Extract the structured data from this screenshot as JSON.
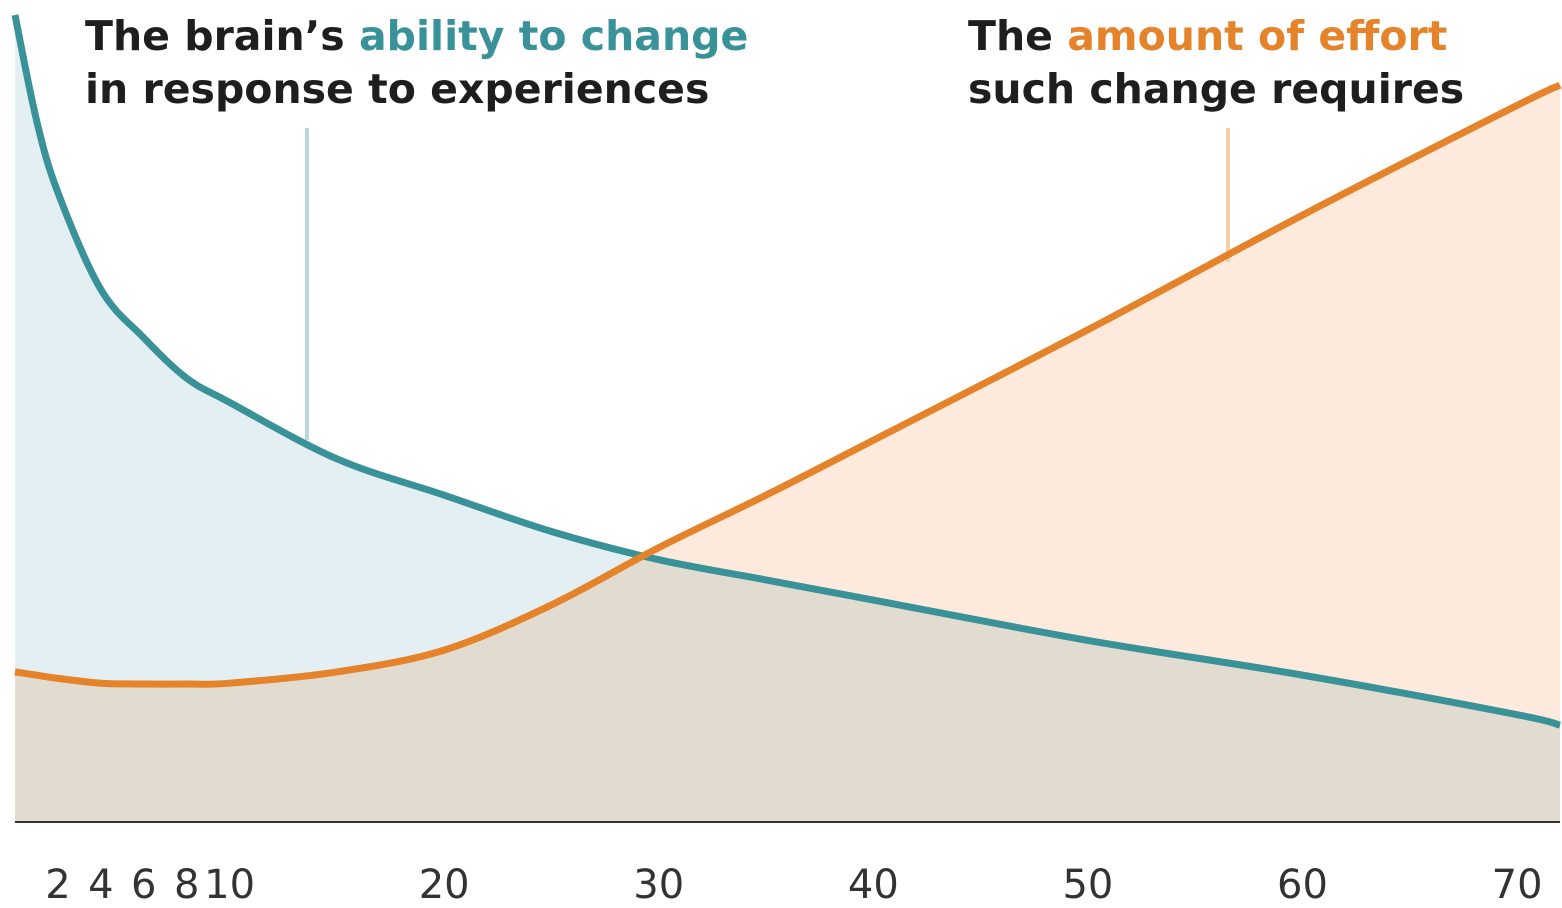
{
  "chart_data": {
    "type": "line",
    "x": [
      0,
      1,
      2,
      4,
      6,
      8,
      10,
      15,
      20,
      25,
      30,
      35,
      40,
      50,
      60,
      70,
      72
    ],
    "series": [
      {
        "color": "#3a9299",
        "fill": "#e3eff2",
        "values": [
          100,
          87,
          78,
          66,
          60,
          55,
          52,
          45,
          40.5,
          36,
          32.5,
          30,
          27.5,
          22.5,
          18.2,
          13.3,
          12
        ]
      },
      {
        "color": "#e5832a",
        "fill": "#fdeadc",
        "values": [
          18.6,
          18.2,
          17.8,
          17.2,
          17.1,
          17.1,
          17.2,
          18.6,
          21.3,
          26.9,
          34,
          40.5,
          47.3,
          61,
          75.2,
          88.8,
          91.3
        ]
      }
    ],
    "xlim": [
      0,
      72
    ],
    "xticks": [
      2,
      4,
      6,
      8,
      10,
      20,
      30,
      40,
      50,
      60,
      70
    ],
    "ylim": [
      0,
      100
    ],
    "annotations": [
      {
        "lead": "The brain’s ",
        "highlight": "ability to change",
        "rest": "in response to experiences"
      },
      {
        "lead": "The ",
        "highlight": "amount of effort",
        "rest": "such change requires"
      }
    ]
  }
}
